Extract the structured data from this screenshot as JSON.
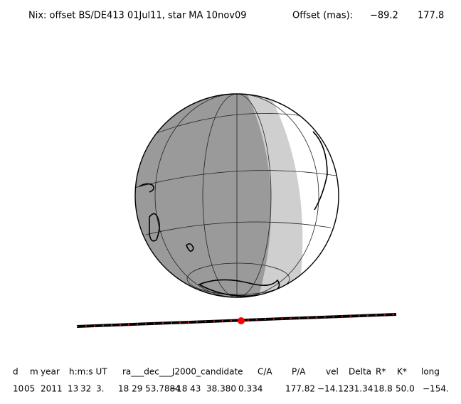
{
  "header": {
    "title": "Nix: offset BS/DE413 01Jul11, star MA 10nov09",
    "offset_label": "Offset (mas):",
    "offset_values": [
      "−89.2",
      "177.8"
    ]
  },
  "table": {
    "columns": [
      "d",
      "m",
      "year",
      "h:m:s UT",
      "ra___dec___J2000_candidate",
      "C/A",
      "P/A",
      "vel",
      "Delta",
      "R*",
      "K*",
      "long"
    ],
    "values": [
      "10",
      "05",
      "2011",
      "13",
      "32",
      "3.",
      "18 29 53.7884",
      "−18 43  38.380",
      "0.334",
      "177.82",
      "−14.12",
      "31.34",
      "18.8",
      "50.0",
      "−154."
    ]
  }
}
